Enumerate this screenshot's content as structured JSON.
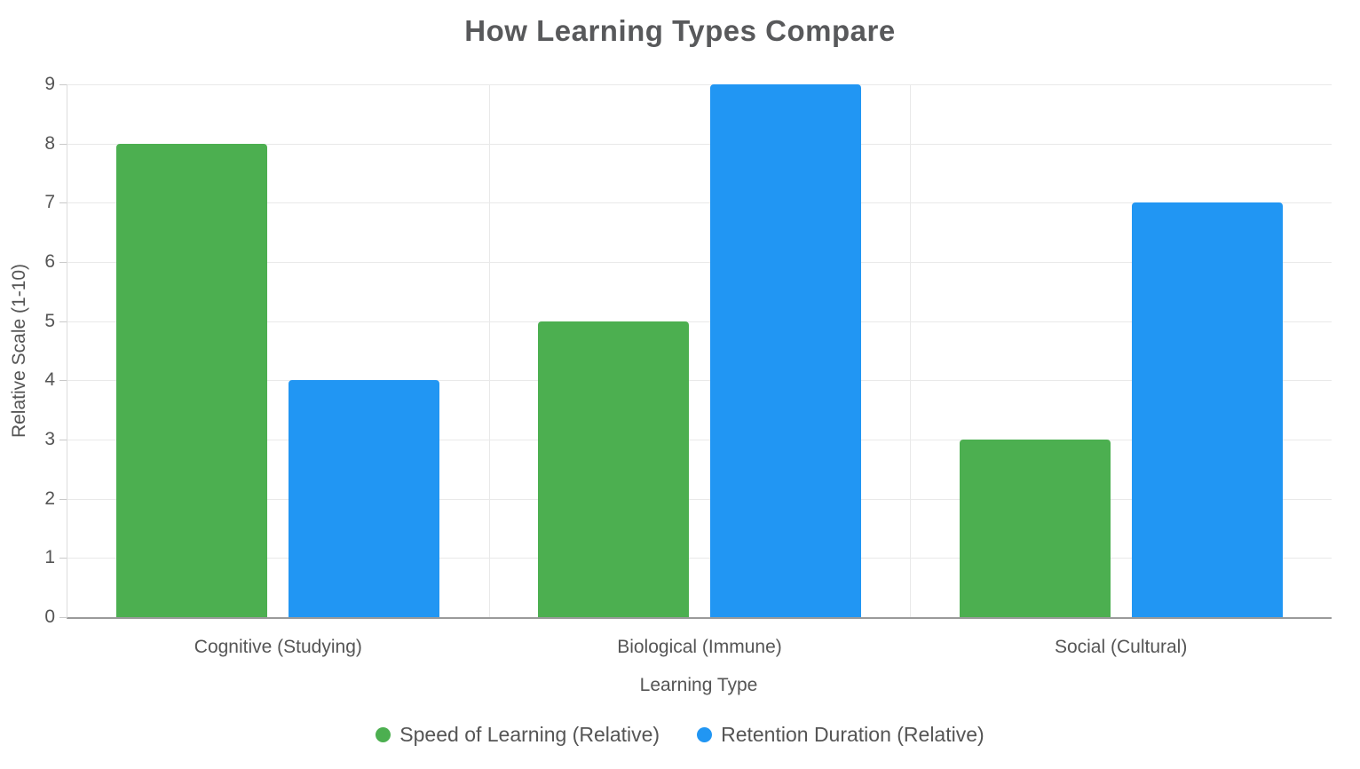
{
  "chart_data": {
    "type": "bar",
    "title": "How Learning Types Compare",
    "xlabel": "Learning Type",
    "ylabel": "Relative Scale (1-10)",
    "categories": [
      "Cognitive (Studying)",
      "Biological (Immune)",
      "Social (Cultural)"
    ],
    "series": [
      {
        "name": "Speed of Learning (Relative)",
        "color": "#4caf50",
        "values": [
          8,
          5,
          3
        ]
      },
      {
        "name": "Retention Duration (Relative)",
        "color": "#2196f3",
        "values": [
          4,
          9,
          7
        ]
      }
    ],
    "ylim": [
      0,
      9
    ],
    "ytick_step": 1,
    "yticks": [
      0,
      1,
      2,
      3,
      4,
      5,
      6,
      7,
      8,
      9
    ],
    "grid": true,
    "legend_position": "bottom"
  },
  "colors": {
    "title_text": "#58595b",
    "axis_text": "#555555",
    "gridline": "#e9e9e9",
    "axis_line": "#9a9a9a",
    "background": "#ffffff"
  }
}
